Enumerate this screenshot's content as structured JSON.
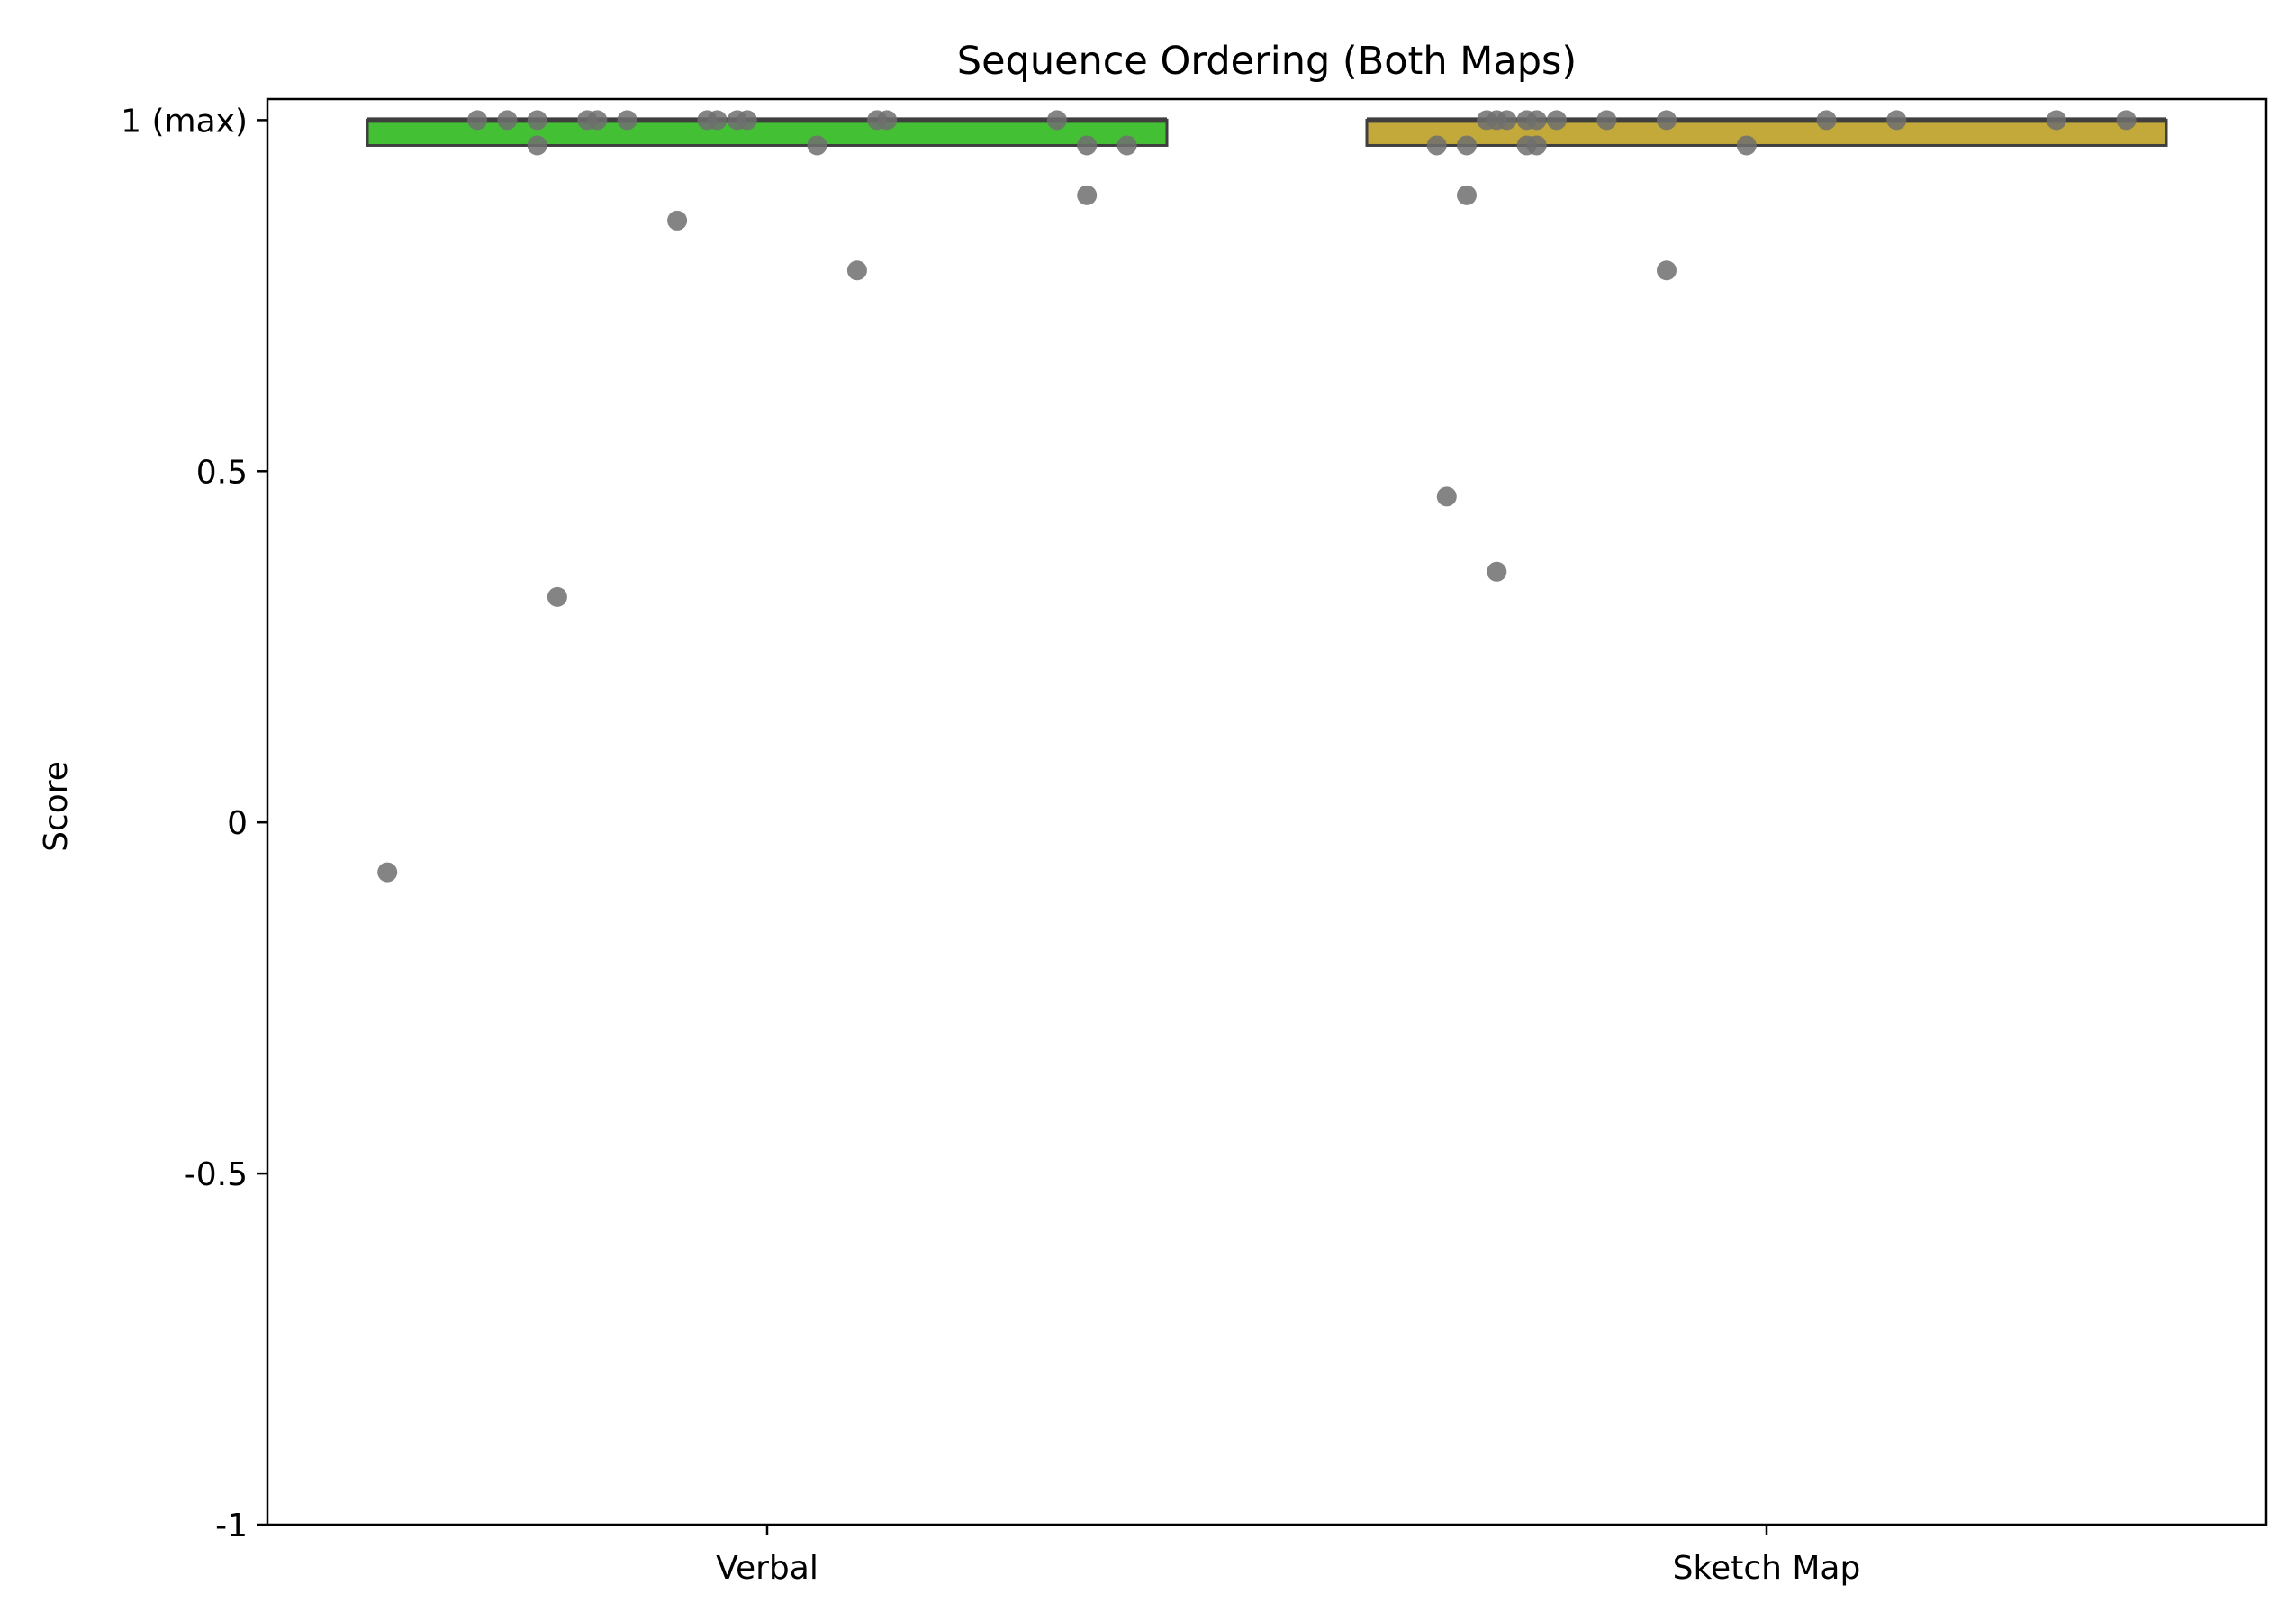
{
  "chart_data": {
    "type": "box",
    "title": "Sequence Ordering (Both Maps)",
    "xlabel": "",
    "ylabel": "Score",
    "ylim": [
      -1,
      1.03
    ],
    "yticks": [
      {
        "value": 1,
        "label": "1 (max)"
      },
      {
        "value": 0.5,
        "label": "0.5"
      },
      {
        "value": 0,
        "label": "0"
      },
      {
        "value": -0.5,
        "label": "-0.5"
      },
      {
        "value": -1,
        "label": "-1"
      }
    ],
    "categories": [
      "Verbal",
      "Sketch Map"
    ],
    "grid": false,
    "legend": "none",
    "boxes": [
      {
        "category": "Verbal",
        "color": "#44c035",
        "q1": 0.964,
        "median": 1.0,
        "q3": 1.0,
        "whisker_low": 0.964,
        "whisker_high": 1.0
      },
      {
        "category": "Sketch Map",
        "color": "#c2a939",
        "q1": 0.964,
        "median": 1.0,
        "q3": 1.0,
        "whisker_low": 0.964,
        "whisker_high": 1.0
      }
    ],
    "points_color": "#6e6e6e",
    "points": [
      {
        "category": "Verbal",
        "values": [
          1,
          1,
          1,
          1,
          1,
          1,
          1,
          1,
          1,
          1,
          1,
          1,
          1,
          0.964,
          0.964,
          0.964,
          0.964,
          0.893,
          0.857,
          0.786,
          0.321,
          -0.071
        ],
        "jitter": [
          -0.29,
          -0.26,
          -0.18,
          -0.17,
          -0.14,
          -0.06,
          -0.05,
          -0.03,
          -0.02,
          0.11,
          0.12,
          0.29,
          -0.23,
          -0.23,
          0.05,
          0.32,
          0.36,
          0.32,
          -0.09,
          0.09,
          -0.21,
          -0.38
        ]
      },
      {
        "category": "Sketch Map",
        "values": [
          1,
          1,
          1,
          1,
          1,
          1,
          1,
          1,
          1,
          1,
          1,
          1,
          0.964,
          0.964,
          0.964,
          0.964,
          0.964,
          0.893,
          0.786,
          0.464,
          0.357
        ],
        "jitter": [
          -0.28,
          -0.27,
          -0.24,
          -0.23,
          -0.21,
          -0.16,
          -0.1,
          0.06,
          0.13,
          0.29,
          0.36,
          -0.26,
          -0.33,
          -0.3,
          -0.24,
          -0.23,
          -0.02,
          -0.3,
          -0.1,
          -0.32,
          -0.27
        ]
      }
    ]
  }
}
